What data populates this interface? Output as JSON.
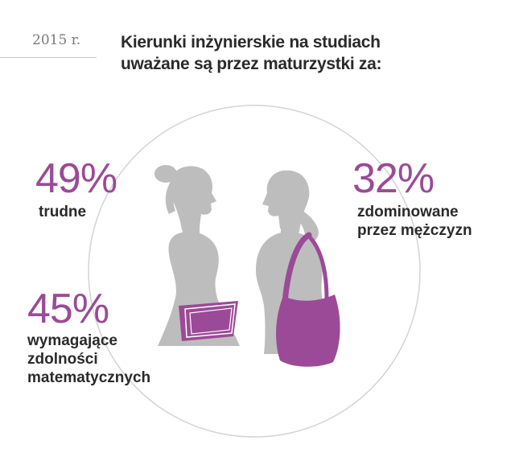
{
  "header": {
    "year": "2015 r.",
    "title_line1": "Kierunki inżynierskie na studiach",
    "title_line2": "uważane są przez maturzystki za:"
  },
  "colors": {
    "accent": "#9b4a97",
    "silhouette": "#bdbdbd",
    "text": "#2a2a2a",
    "circle": "#d4d4d4"
  },
  "chart_data": {
    "type": "infographic",
    "title": "Kierunki inżynierskie na studiach uważane są przez maturzystki za:",
    "unit": "%",
    "items": [
      {
        "value": 49,
        "value_label": "49%",
        "lines": [
          "trudne"
        ]
      },
      {
        "value": 32,
        "value_label": "32%",
        "lines": [
          "zdominowane",
          "przez mężczyzn"
        ]
      },
      {
        "value": 45,
        "value_label": "45%",
        "lines": [
          "wymagające",
          "zdolności",
          "matematycznych"
        ]
      }
    ]
  }
}
